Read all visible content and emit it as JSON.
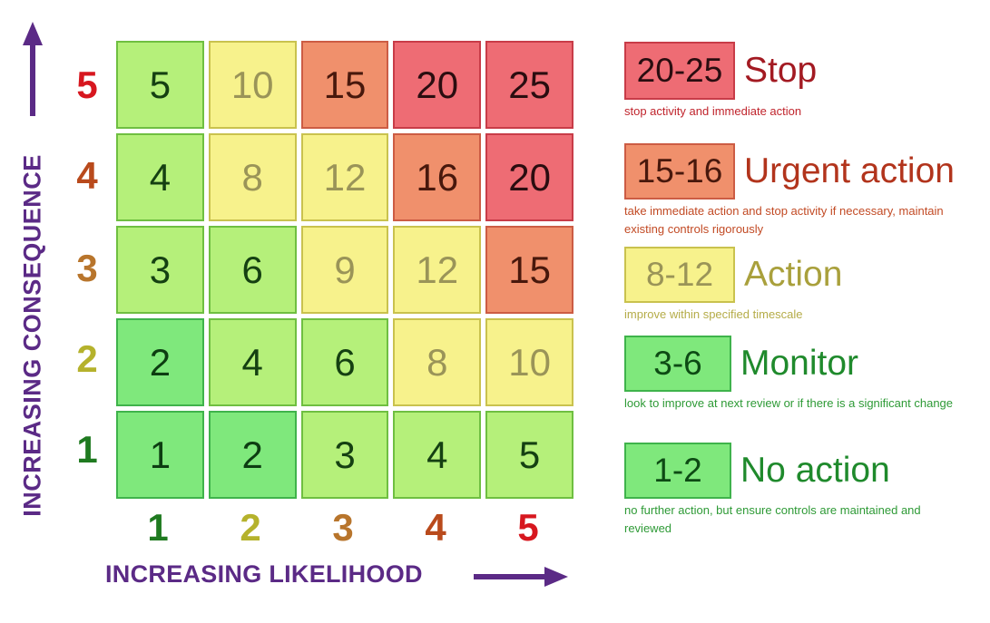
{
  "axes": {
    "y_title": "INCREASING CONSEQUENCE",
    "x_title": "INCREASING LIKELIHOOD",
    "y_levels": [
      {
        "label": "5",
        "color": "#d7171f"
      },
      {
        "label": "4",
        "color": "#b94a1c"
      },
      {
        "label": "3",
        "color": "#b8752c"
      },
      {
        "label": "2",
        "color": "#b5b22c"
      },
      {
        "label": "1",
        "color": "#1f7a20"
      }
    ],
    "x_levels": [
      {
        "label": "1",
        "color": "#1f7a20"
      },
      {
        "label": "2",
        "color": "#b5b22c"
      },
      {
        "label": "3",
        "color": "#b8752c"
      },
      {
        "label": "4",
        "color": "#b94a1c"
      },
      {
        "label": "5",
        "color": "#d7171f"
      }
    ],
    "arrow_color": "#5b2a86"
  },
  "matrix": [
    [
      {
        "value": "5",
        "level": "monitor"
      },
      {
        "value": "10",
        "level": "action"
      },
      {
        "value": "15",
        "level": "urgent"
      },
      {
        "value": "20",
        "level": "stop"
      },
      {
        "value": "25",
        "level": "stop"
      }
    ],
    [
      {
        "value": "4",
        "level": "monitor"
      },
      {
        "value": "8",
        "level": "action"
      },
      {
        "value": "12",
        "level": "action"
      },
      {
        "value": "16",
        "level": "urgent"
      },
      {
        "value": "20",
        "level": "stop"
      }
    ],
    [
      {
        "value": "3",
        "level": "monitor"
      },
      {
        "value": "6",
        "level": "monitor"
      },
      {
        "value": "9",
        "level": "action"
      },
      {
        "value": "12",
        "level": "action"
      },
      {
        "value": "15",
        "level": "urgent"
      }
    ],
    [
      {
        "value": "2",
        "level": "noaction"
      },
      {
        "value": "4",
        "level": "monitor"
      },
      {
        "value": "6",
        "level": "monitor"
      },
      {
        "value": "8",
        "level": "action"
      },
      {
        "value": "10",
        "level": "action"
      }
    ],
    [
      {
        "value": "1",
        "level": "noaction"
      },
      {
        "value": "2",
        "level": "noaction"
      },
      {
        "value": "3",
        "level": "monitor"
      },
      {
        "value": "4",
        "level": "monitor"
      },
      {
        "value": "5",
        "level": "monitor"
      }
    ]
  ],
  "legend": [
    {
      "key": "stop",
      "range": "20-25",
      "title": "Stop",
      "title_color": "#a31a22",
      "desc": "stop activity and immediate action",
      "desc_color": "#c0242c",
      "swatch_bg": "#ee6c74",
      "swatch_border": "#c83c48",
      "swatch_text": "#2a0d10"
    },
    {
      "key": "urgent",
      "range": "15-16",
      "title": "Urgent action",
      "title_color": "#b2341c",
      "desc": "take immediate action and stop activity if necessary, maintain existing controls rigorously",
      "desc_color": "#c24a24",
      "swatch_bg": "#f0906c",
      "swatch_border": "#cc5c44",
      "swatch_text": "#48180c"
    },
    {
      "key": "action",
      "range": "8-12",
      "title": "Action",
      "title_color": "#a9a03c",
      "desc": "improve within specified timescale",
      "desc_color": "#b5ac48",
      "swatch_bg": "#f7f28c",
      "swatch_border": "#c9c24e",
      "swatch_text": "#9a9458"
    },
    {
      "key": "monitor",
      "range": "3-6",
      "title": "Monitor",
      "title_color": "#1f8a2c",
      "desc": "look to improve at next review or if there is a significant change",
      "desc_color": "#2e9a36",
      "swatch_bg": "#7fe87c",
      "swatch_border": "#3fb34b",
      "swatch_text": "#0d4a14"
    },
    {
      "key": "noaction",
      "range": "1-2",
      "title": "No action",
      "title_color": "#1f8a2c",
      "desc": "no further action, but ensure controls are maintained and reviewed",
      "desc_color": "#2e9a36",
      "swatch_bg": "#7fe87c",
      "swatch_border": "#3fb34b",
      "swatch_text": "#0d4a14"
    }
  ]
}
